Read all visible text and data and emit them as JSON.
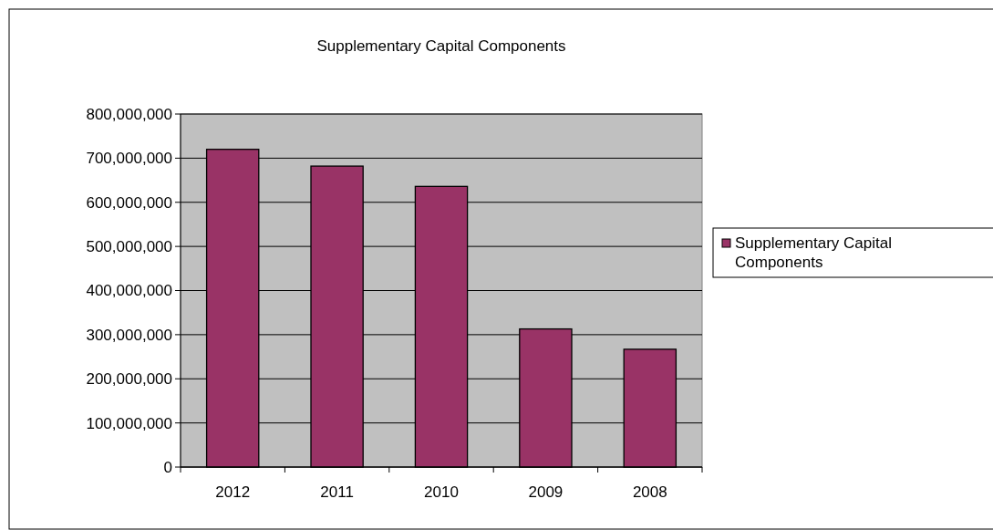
{
  "chart_data": {
    "type": "bar",
    "title": "Supplementary Capital Components",
    "categories": [
      "2012",
      "2011",
      "2010",
      "2009",
      "2008"
    ],
    "series": [
      {
        "name": "Supplementary Capital Components",
        "color": "#993366",
        "values": [
          720000000,
          682000000,
          636000000,
          313000000,
          267000000
        ]
      }
    ],
    "ylim": [
      0,
      800000000
    ],
    "yticks": [
      {
        "value": 0,
        "label": "0"
      },
      {
        "value": 100000000,
        "label": "100,000,000"
      },
      {
        "value": 200000000,
        "label": "200,000,000"
      },
      {
        "value": 300000000,
        "label": "300,000,000"
      },
      {
        "value": 400000000,
        "label": "400,000,000"
      },
      {
        "value": 500000000,
        "label": "500,000,000"
      },
      {
        "value": 600000000,
        "label": "600,000,000"
      },
      {
        "value": 700000000,
        "label": "700,000,000"
      },
      {
        "value": 800000000,
        "label": "800,000,000"
      }
    ],
    "grid": "y",
    "legend": "right"
  }
}
